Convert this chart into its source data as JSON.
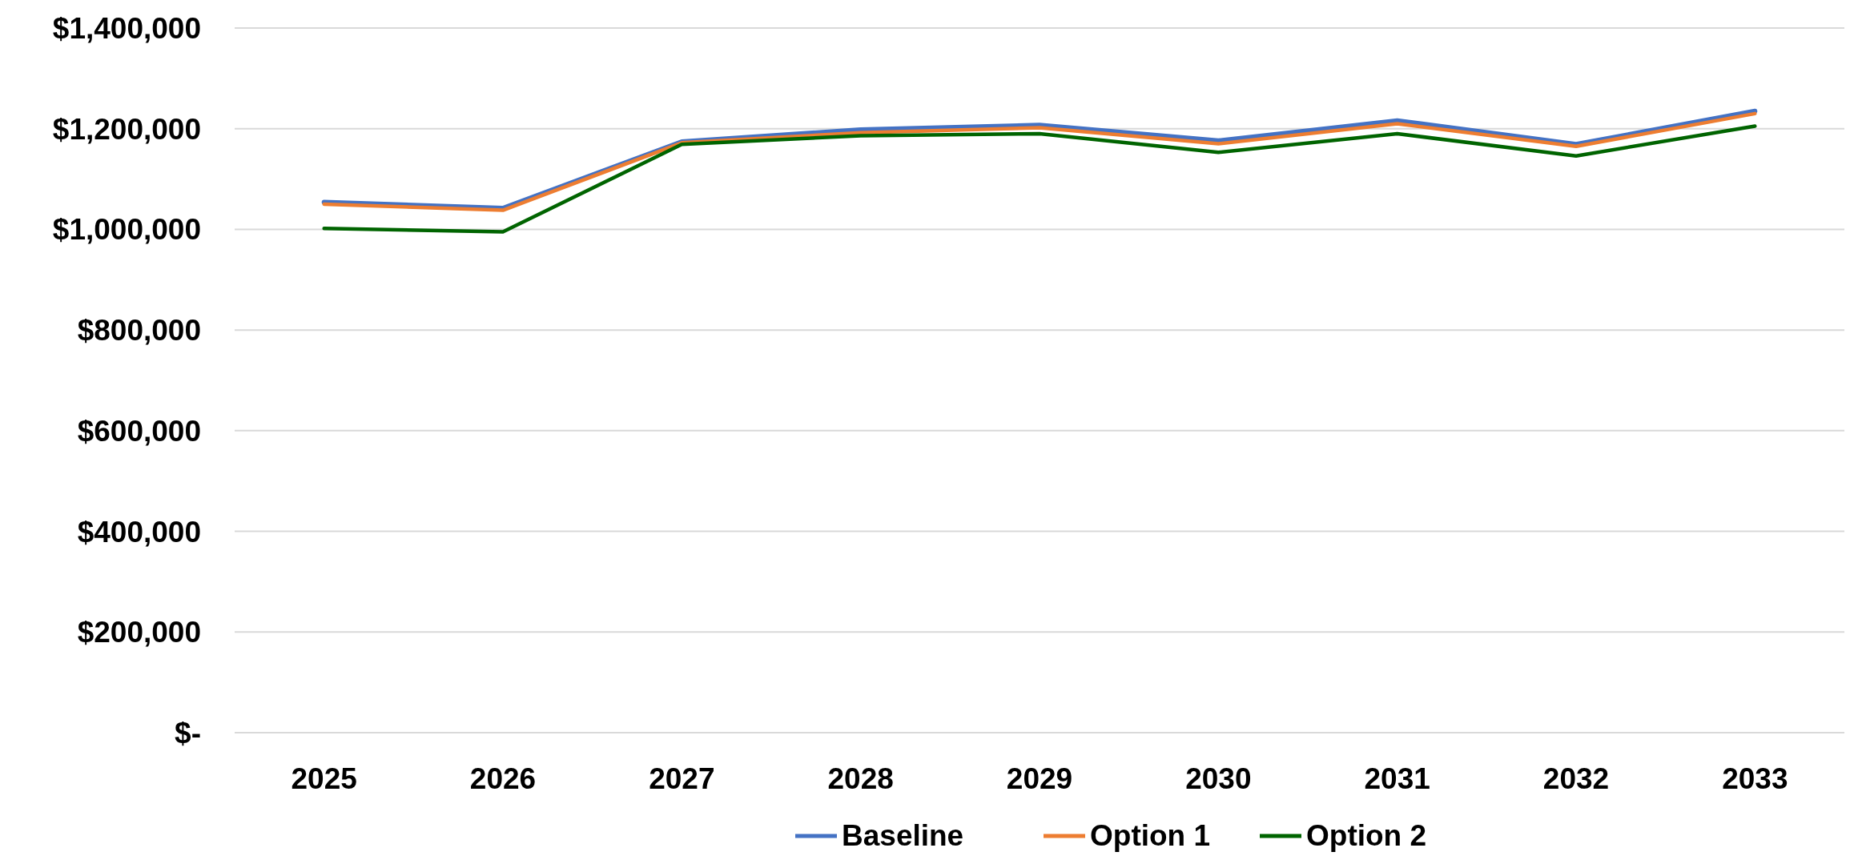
{
  "chart_data": {
    "type": "line",
    "categories": [
      "2025",
      "2026",
      "2027",
      "2028",
      "2029",
      "2030",
      "2031",
      "2032",
      "2033"
    ],
    "series": [
      {
        "name": "Baseline",
        "color": "#4472c4",
        "values": [
          1054000,
          1042000,
          1174000,
          1198000,
          1207000,
          1176000,
          1216000,
          1169000,
          1235000
        ]
      },
      {
        "name": "Option 1",
        "color": "#ed7d31",
        "values": [
          1050000,
          1038000,
          1172000,
          1192000,
          1202000,
          1170000,
          1210000,
          1165000,
          1230000
        ]
      },
      {
        "name": "Option 2",
        "color": "#006400",
        "values": [
          1002000,
          995000,
          1169000,
          1186000,
          1190000,
          1153000,
          1190000,
          1146000,
          1205000
        ]
      }
    ],
    "ylim": [
      0,
      1400000
    ],
    "yticks": [
      {
        "value": 0,
        "label": "$-"
      },
      {
        "value": 200000,
        "label": "$200,000"
      },
      {
        "value": 400000,
        "label": "$400,000"
      },
      {
        "value": 600000,
        "label": "$600,000"
      },
      {
        "value": 800000,
        "label": "$800,000"
      },
      {
        "value": 1000000,
        "label": "$1,000,000"
      },
      {
        "value": 1200000,
        "label": "$1,200,000"
      },
      {
        "value": 1400000,
        "label": "$1,400,000"
      }
    ],
    "grid": "y",
    "legend": "bottom",
    "marker": "none",
    "line_style": "solid"
  }
}
